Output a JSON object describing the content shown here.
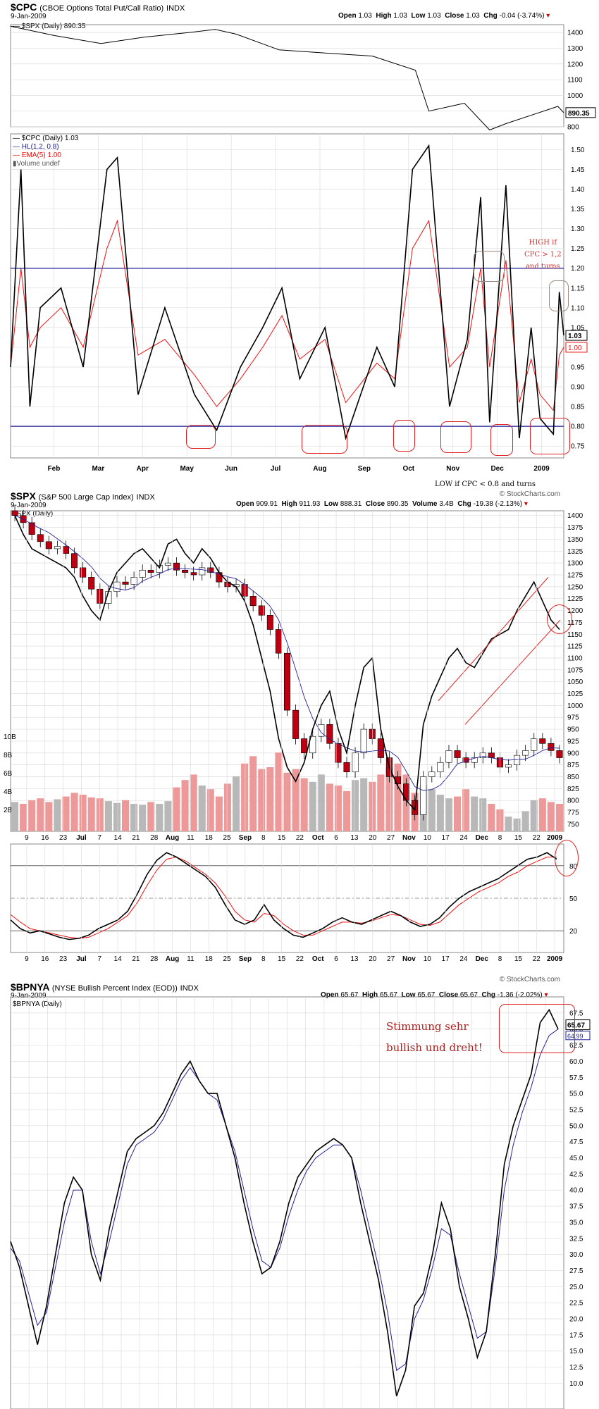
{
  "cpc": {
    "symbol": "$CPC",
    "name": "(CBOE Options Total Put/Call Ratio)",
    "exchange": "INDX",
    "date": "9-Jan-2009",
    "open": "1.03",
    "high": "1.03",
    "low": "1.03",
    "close": "1.03",
    "chg": "-0.04 (-3.74%)",
    "ohlc_labels": {
      "open": "Open",
      "high": "High",
      "low": "Low",
      "close": "Close",
      "chg": "Chg"
    },
    "overlay_legend": "$SPX (Daily) 890.35",
    "overlay_last": "890.35",
    "legend": [
      "$CPC (Daily) 1.03",
      "HL(1.2, 0.8)",
      "EMA(5) 1.00",
      "Volume undef"
    ],
    "last_value": "1.03",
    "ema_last": "1.00",
    "note_high": [
      "HIGH if",
      "CPC > 1,2",
      "and turns"
    ],
    "note_low": "LOW if CPC < 0.8 and turns"
  },
  "spx": {
    "symbol": "$SPX",
    "name": "(S&P 500 Large Cap Index)",
    "exchange": "INDX",
    "date": "9-Jan-2009",
    "copyright": "© StockCharts.com",
    "open": "909.91",
    "high": "911.93",
    "low": "888.31",
    "close": "890.35",
    "volume": "3.4B",
    "chg": "-19.38 (-2.13%)",
    "ohlc_labels": {
      "open": "Open",
      "high": "High",
      "low": "Low",
      "close": "Close",
      "volume": "Volume",
      "chg": "Chg"
    },
    "legend": "$SPX (Daily)"
  },
  "bpnya": {
    "symbol": "$BPNYA",
    "name": "(NYSE Bullish Percent Index (EOD))",
    "exchange": "INDX",
    "date": "9-Jan-2009",
    "copyright": "© StockCharts.com",
    "open": "65.67",
    "high": "65.67",
    "low": "65.67",
    "close": "65.67",
    "chg": "-1.36 (-2.02%)",
    "ohlc_labels": {
      "open": "Open",
      "high": "High",
      "low": "Low",
      "close": "Close",
      "chg": "Chg"
    },
    "legend": "$BPNYA (Daily)",
    "last_value": "65.67",
    "ma_last": "64.99",
    "note": [
      "Stimmung sehr",
      "bullish und dreht!"
    ]
  },
  "colors": {
    "price": "#000000",
    "ema": "#ee1111",
    "hl": "#1a1a99",
    "up": "#ffffff",
    "down": "#bb0011",
    "vol_up": "#b8b8b8",
    "vol_down": "#ee9999",
    "annotation": "#e02020",
    "grid": "#dddddd"
  },
  "chart_data": [
    {
      "id": "spx_overlay",
      "type": "line",
      "name": "$SPX (Daily)",
      "ylim": [
        800,
        1450
      ],
      "ticks": [
        800,
        900,
        1000,
        1100,
        1200,
        1300,
        1400
      ],
      "x": [
        "2008-01-02",
        "2008-02-01",
        "2008-03-03",
        "2008-04-01",
        "2008-05-01",
        "2008-05-19",
        "2008-06-02",
        "2008-07-01",
        "2008-08-01",
        "2008-09-02",
        "2008-10-01",
        "2008-10-10",
        "2008-11-03",
        "2008-11-20",
        "2008-12-01",
        "2009-01-05",
        "2009-01-09"
      ],
      "values": [
        1440,
        1380,
        1330,
        1370,
        1400,
        1420,
        1390,
        1290,
        1270,
        1250,
        1160,
        900,
        950,
        780,
        820,
        930,
        890
      ]
    },
    {
      "id": "cpc",
      "type": "line",
      "ylim": [
        0.72,
        1.54
      ],
      "ticks": [
        0.75,
        0.8,
        0.85,
        0.9,
        0.95,
        1.0,
        1.05,
        1.1,
        1.15,
        1.2,
        1.25,
        1.3,
        1.35,
        1.4,
        1.45,
        1.5
      ],
      "x_ticks": [
        "Feb",
        "Mar",
        "Apr",
        "May",
        "Jun",
        "Jul",
        "Aug",
        "Sep",
        "Oct",
        "Nov",
        "Dec",
        "2009"
      ],
      "hlines": [
        1.2,
        0.8
      ],
      "x": [
        "2008-01-02",
        "2008-01-09",
        "2008-01-15",
        "2008-01-22",
        "2008-02-05",
        "2008-02-20",
        "2008-03-07",
        "2008-03-14",
        "2008-03-28",
        "2008-04-15",
        "2008-05-05",
        "2008-05-20",
        "2008-06-05",
        "2008-06-20",
        "2008-07-03",
        "2008-07-15",
        "2008-08-01",
        "2008-08-15",
        "2008-09-05",
        "2008-09-17",
        "2008-09-29",
        "2008-10-10",
        "2008-10-24",
        "2008-11-05",
        "2008-11-14",
        "2008-11-20",
        "2008-12-01",
        "2008-12-10",
        "2008-12-18",
        "2008-12-24",
        "2009-01-02",
        "2009-01-06",
        "2009-01-09"
      ],
      "values": [
        0.95,
        1.45,
        0.85,
        1.1,
        1.15,
        0.95,
        1.45,
        1.48,
        0.88,
        1.1,
        0.88,
        0.79,
        0.95,
        1.05,
        1.15,
        0.92,
        1.05,
        0.77,
        1.0,
        0.9,
        1.45,
        1.51,
        0.85,
        1.02,
        1.38,
        0.81,
        1.41,
        0.77,
        1.05,
        0.82,
        0.78,
        1.14,
        1.03
      ],
      "ema": [
        0.95,
        1.2,
        1.0,
        1.05,
        1.1,
        1.0,
        1.25,
        1.32,
        0.98,
        1.02,
        0.93,
        0.85,
        0.92,
        1.0,
        1.08,
        0.97,
        1.02,
        0.86,
        0.96,
        0.92,
        1.25,
        1.32,
        0.95,
        1.0,
        1.2,
        0.95,
        1.22,
        0.86,
        0.97,
        0.88,
        0.84,
        0.98,
        1.0
      ]
    },
    {
      "id": "spx",
      "type": "candlestick",
      "ylim": [
        735,
        1410
      ],
      "ticks": [
        750,
        775,
        800,
        825,
        850,
        875,
        900,
        925,
        950,
        975,
        1000,
        1025,
        1050,
        1075,
        1100,
        1125,
        1150,
        1175,
        1200,
        1225,
        1250,
        1275,
        1300,
        1325,
        1350,
        1375,
        1400
      ],
      "x_ticks": [
        "9",
        "16",
        "23",
        "Jul",
        "7",
        "14",
        "21",
        "28",
        "Aug",
        "11",
        "18",
        "25",
        "Sep",
        "8",
        "15",
        "22",
        "Oct",
        "6",
        "13",
        "20",
        "27",
        "Nov",
        "10",
        "17",
        "24",
        "Dec",
        "8",
        "15",
        "22",
        "2009"
      ],
      "volume_ticks": [
        "2B",
        "4B",
        "6B",
        "8B",
        "10B"
      ],
      "close": [
        1400,
        1385,
        1360,
        1345,
        1330,
        1335,
        1320,
        1290,
        1270,
        1245,
        1215,
        1240,
        1260,
        1255,
        1270,
        1285,
        1280,
        1295,
        1300,
        1285,
        1280,
        1275,
        1290,
        1280,
        1260,
        1250,
        1255,
        1230,
        1210,
        1190,
        1160,
        1110,
        990,
        930,
        900,
        935,
        960,
        920,
        880,
        860,
        900,
        950,
        930,
        890,
        850,
        835,
        800,
        770,
        850,
        860,
        880,
        905,
        890,
        880,
        890,
        900,
        890,
        870,
        875,
        895,
        905,
        930,
        920,
        905,
        890
      ],
      "volume_b": [
        3.2,
        3.0,
        3.4,
        3.6,
        3.2,
        3.5,
        3.8,
        4.2,
        4.0,
        3.7,
        3.6,
        3.3,
        3.1,
        3.4,
        3.0,
        2.9,
        3.2,
        3.0,
        3.3,
        4.8,
        5.6,
        6.2,
        5.0,
        4.6,
        3.8,
        5.2,
        6.0,
        7.4,
        8.2,
        6.8,
        7.0,
        8.6,
        6.4,
        6.8,
        5.8,
        5.4,
        6.2,
        5.2,
        5.0,
        4.4,
        5.6,
        5.8,
        5.4,
        6.2,
        7.0,
        7.4,
        6.2,
        4.2,
        5.0,
        4.6,
        4.0,
        3.6,
        3.8,
        4.6,
        3.8,
        3.6,
        3.0,
        2.4,
        1.6,
        1.4,
        2.2,
        3.4,
        3.6,
        3.2,
        3.0
      ],
      "overlay": [
        1400,
        1360,
        1330,
        1320,
        1310,
        1300,
        1290,
        1270,
        1230,
        1200,
        1180,
        1240,
        1280,
        1300,
        1320,
        1330,
        1310,
        1290,
        1340,
        1350,
        1320,
        1300,
        1330,
        1310,
        1280,
        1260,
        1250,
        1220,
        1170,
        1100,
        1030,
        930,
        870,
        840,
        880,
        950,
        1000,
        1030,
        950,
        900,
        1000,
        1080,
        1100,
        950,
        870,
        830,
        800,
        780,
        960,
        1020,
        1060,
        1100,
        1120,
        1090,
        1080,
        1110,
        1140,
        1150,
        1160,
        1200,
        1230,
        1260,
        1220,
        1180,
        1160
      ]
    },
    {
      "id": "stoch",
      "type": "line",
      "ylim": [
        0,
        100
      ],
      "ticks": [
        20,
        50,
        80
      ],
      "hlines": [
        20,
        50,
        80
      ],
      "fast": [
        30,
        22,
        18,
        20,
        17,
        14,
        12,
        13,
        16,
        22,
        26,
        30,
        38,
        54,
        72,
        85,
        92,
        88,
        82,
        76,
        70,
        60,
        44,
        30,
        26,
        30,
        44,
        30,
        22,
        16,
        14,
        18,
        22,
        28,
        32,
        28,
        26,
        30,
        34,
        38,
        34,
        28,
        24,
        26,
        32,
        42,
        50,
        56,
        60,
        64,
        68,
        74,
        80,
        86,
        88,
        92,
        86
      ],
      "slow": [
        35,
        28,
        22,
        20,
        18,
        16,
        14,
        13,
        14,
        18,
        22,
        28,
        34,
        46,
        62,
        76,
        86,
        88,
        84,
        78,
        72,
        64,
        52,
        38,
        30,
        28,
        36,
        34,
        26,
        20,
        16,
        16,
        20,
        24,
        28,
        28,
        27,
        29,
        32,
        35,
        34,
        30,
        26,
        25,
        28,
        36,
        44,
        50,
        56,
        60,
        64,
        70,
        74,
        80,
        84,
        88,
        88
      ]
    },
    {
      "id": "bpnya",
      "type": "line",
      "ylim": [
        6,
        70
      ],
      "ticks": [
        10,
        12.5,
        15,
        17.5,
        20,
        22.5,
        25,
        27.5,
        30,
        32.5,
        35,
        37.5,
        40,
        42.5,
        45,
        47.5,
        50,
        52.5,
        55,
        57.5,
        60,
        62.5,
        65,
        67.5
      ],
      "values": [
        32,
        28,
        22,
        16,
        22,
        30,
        38,
        42,
        40,
        30,
        26,
        34,
        40,
        46,
        48,
        49,
        50,
        52,
        55,
        58,
        60,
        57,
        55,
        55,
        50,
        45,
        38,
        32,
        27,
        28,
        32,
        38,
        42,
        44,
        46,
        47,
        48,
        47,
        45,
        38,
        32,
        26,
        18,
        8,
        12,
        22,
        24,
        30,
        38,
        34,
        25,
        20,
        14,
        18,
        30,
        44,
        50,
        54,
        58,
        66,
        68,
        65
      ],
      "ma": [
        31,
        29,
        24,
        19,
        21,
        28,
        35,
        40,
        40,
        32,
        27,
        32,
        38,
        44,
        47,
        48,
        49,
        51,
        54,
        57,
        59,
        57,
        55,
        54,
        50,
        46,
        40,
        34,
        29,
        28,
        31,
        36,
        40,
        43,
        45,
        46,
        47,
        47,
        45,
        40,
        34,
        28,
        21,
        12,
        13,
        20,
        23,
        28,
        34,
        33,
        27,
        22,
        17,
        18,
        28,
        40,
        47,
        52,
        56,
        61,
        64,
        65
      ]
    }
  ]
}
